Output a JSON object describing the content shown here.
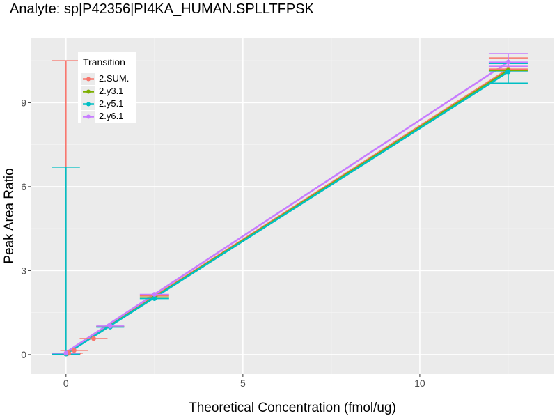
{
  "chart_data": {
    "type": "line",
    "title": "Analyte: sp|P42356|PI4KA_HUMAN.SPLLTFPSK",
    "xlabel": "Theoretical Concentration (fmol/ug)",
    "ylabel": "Peak Area Ratio",
    "xlim": [
      -1,
      13.8
    ],
    "ylim": [
      -0.7,
      11.3
    ],
    "x_ticks": [
      0,
      5,
      10
    ],
    "y_ticks": [
      0,
      3,
      6,
      9
    ],
    "x_tick_labels": [
      "0",
      "5",
      "10"
    ],
    "y_tick_labels": [
      "0",
      "3",
      "6",
      "9"
    ],
    "grid": true,
    "legend": {
      "title": "Transition",
      "position": "top-left"
    },
    "series": [
      {
        "name": "2.SUM.",
        "color": "#F8766D",
        "points": [
          {
            "x": 0,
            "y": 0.02,
            "ymin": 0.0,
            "ymax": 10.5
          },
          {
            "x": 0.03,
            "y": 0.03
          },
          {
            "x": 0.08,
            "y": 0.05
          },
          {
            "x": 0.23,
            "y": 0.15
          },
          {
            "x": 0.78,
            "y": 0.57
          },
          {
            "x": 1.25,
            "y": 1.0
          },
          {
            "x": 2.5,
            "y": 2.1
          },
          {
            "x": 12.5,
            "y": 10.2,
            "ymin": 10.1,
            "ymax": 10.6
          }
        ],
        "fit": {
          "x": [
            0,
            12.5
          ],
          "y": [
            0.05,
            10.2
          ]
        }
      },
      {
        "name": "2.y3.1",
        "color": "#7CAE00",
        "points": [
          {
            "x": 0,
            "y": 0.02
          },
          {
            "x": 1.25,
            "y": 1.0
          },
          {
            "x": 2.5,
            "y": 2.05
          },
          {
            "x": 12.5,
            "y": 10.15
          }
        ],
        "fit": {
          "x": [
            0,
            12.5
          ],
          "y": [
            0.03,
            10.15
          ]
        }
      },
      {
        "name": "2.y5.1",
        "color": "#00BFC4",
        "points": [
          {
            "x": 0,
            "y": 0.02,
            "ymin": 0.0,
            "ymax": 6.7
          },
          {
            "x": 1.25,
            "y": 0.98
          },
          {
            "x": 2.5,
            "y": 2.0
          },
          {
            "x": 12.5,
            "y": 10.1,
            "ymin": 9.7,
            "ymax": 10.4
          }
        ],
        "fit": {
          "x": [
            0,
            12.5
          ],
          "y": [
            0.02,
            10.1
          ]
        }
      },
      {
        "name": "2.y6.1",
        "color": "#C77CFF",
        "points": [
          {
            "x": 0,
            "y": 0.05
          },
          {
            "x": 1.25,
            "y": 1.02
          },
          {
            "x": 2.5,
            "y": 2.15
          },
          {
            "x": 12.5,
            "y": 10.45,
            "ymin": 10.3,
            "ymax": 10.75
          }
        ],
        "fit": {
          "x": [
            0,
            12.5
          ],
          "y": [
            0.08,
            10.45
          ]
        }
      }
    ]
  }
}
